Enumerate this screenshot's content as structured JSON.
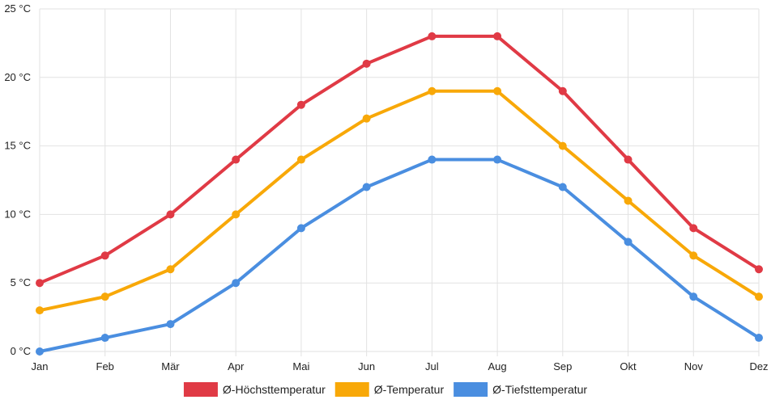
{
  "chart_data": {
    "type": "line",
    "title": "",
    "xlabel": "",
    "ylabel": "",
    "unit": "°C",
    "ylim": [
      0,
      25
    ],
    "y_ticks": [
      0,
      5,
      10,
      15,
      20,
      25
    ],
    "y_tick_labels": [
      "0 °C",
      "5 °C",
      "10 °C",
      "15 °C",
      "20 °C",
      "25 °C"
    ],
    "grid": true,
    "legend_position": "bottom-center",
    "categories": [
      "Jan",
      "Feb",
      "Mär",
      "Apr",
      "Mai",
      "Jun",
      "Jul",
      "Aug",
      "Sep",
      "Okt",
      "Nov",
      "Dez"
    ],
    "series": [
      {
        "name": "Ø-Höchsttemperatur",
        "color": "#e03a45",
        "values": [
          5,
          7,
          10,
          14,
          18,
          21,
          23,
          23,
          19,
          14,
          9,
          6
        ]
      },
      {
        "name": "Ø-Temperatur",
        "color": "#f8a808",
        "values": [
          3,
          4,
          6,
          10,
          14,
          17,
          19,
          19,
          15,
          11,
          7,
          4
        ]
      },
      {
        "name": "Ø-Tiefsttemperatur",
        "color": "#4a8ee0",
        "values": [
          0,
          1,
          2,
          5,
          9,
          12,
          14,
          14,
          12,
          8,
          4,
          1
        ]
      }
    ]
  }
}
